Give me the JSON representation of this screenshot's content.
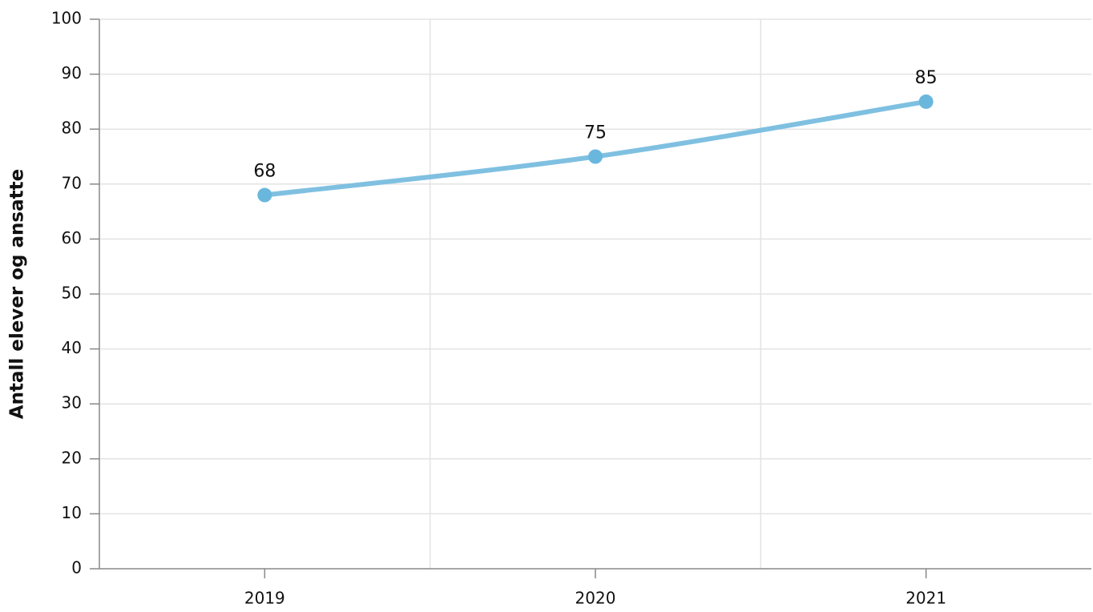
{
  "chart_data": {
    "type": "line",
    "y_label": "Antall elever og ansatte",
    "categories": [
      "2019",
      "2020",
      "2021"
    ],
    "values": [
      68,
      75,
      85
    ],
    "color": "#7fc0e1",
    "ylim": [
      0,
      100
    ],
    "yticks": [
      0,
      10,
      20,
      30,
      40,
      50,
      60,
      70,
      80,
      90,
      100
    ],
    "grid": true,
    "smooth": true,
    "data_labels": true
  }
}
